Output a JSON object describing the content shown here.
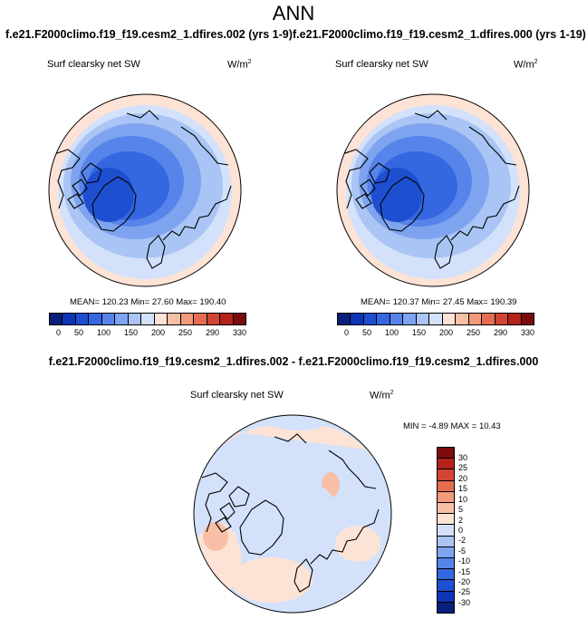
{
  "page_title": "ANN",
  "header": {
    "left_run": "f.e21.F2000climo.f19_f19.cesm2_1.dfires.002 (yrs 1-9)",
    "right_run": "f.e21.F2000climo.f19_f19.cesm2_1.dfires.000 (yrs 1-19)"
  },
  "diff_title": "f.e21.F2000climo.f19_f19.cesm2_1.dfires.002 - f.e21.F2000climo.f19_f19.cesm2_1.dfires.000",
  "units_base": "W/m",
  "units_exp": "2",
  "panels": [
    {
      "variable": "Surf clearsky net SW",
      "mean_label": "MEAN= 120.23  Min=  27.60  Max= 190.40"
    },
    {
      "variable": "Surf clearsky net SW",
      "mean_label": "MEAN= 120.37  Min=  27.45  Max= 190.39"
    }
  ],
  "diff_panel": {
    "variable": "Surf clearsky net SW",
    "minmax_label": "MIN =  -4.89 MAX =  10.43"
  },
  "colorbar_abs": {
    "colors": [
      "#08207a",
      "#0b35b5",
      "#1f4fd1",
      "#3567e0",
      "#5684ea",
      "#7ea4f0",
      "#a9c4f5",
      "#d3e1fb",
      "#fde3d6",
      "#f7c0a6",
      "#f29a7b",
      "#e66e50",
      "#d34533",
      "#b4221a",
      "#7d0b0b"
    ],
    "tick_labels": [
      "0",
      "50",
      "100",
      "150",
      "200",
      "250",
      "290",
      "330"
    ]
  },
  "colorbar_diff": {
    "colors": [
      "#7d0b0b",
      "#b4221a",
      "#d34533",
      "#e66e50",
      "#f29a7b",
      "#f7c0a6",
      "#fde3d6",
      "#d3e1fb",
      "#a9c4f5",
      "#7ea4f0",
      "#5684ea",
      "#3567e0",
      "#1f4fd1",
      "#0b35b5",
      "#08207a"
    ],
    "tick_labels": [
      "30",
      "25",
      "20",
      "15",
      "10",
      "5",
      "2",
      "0",
      "-2",
      "-5",
      "-10",
      "-15",
      "-20",
      "-25",
      "-30"
    ]
  }
}
